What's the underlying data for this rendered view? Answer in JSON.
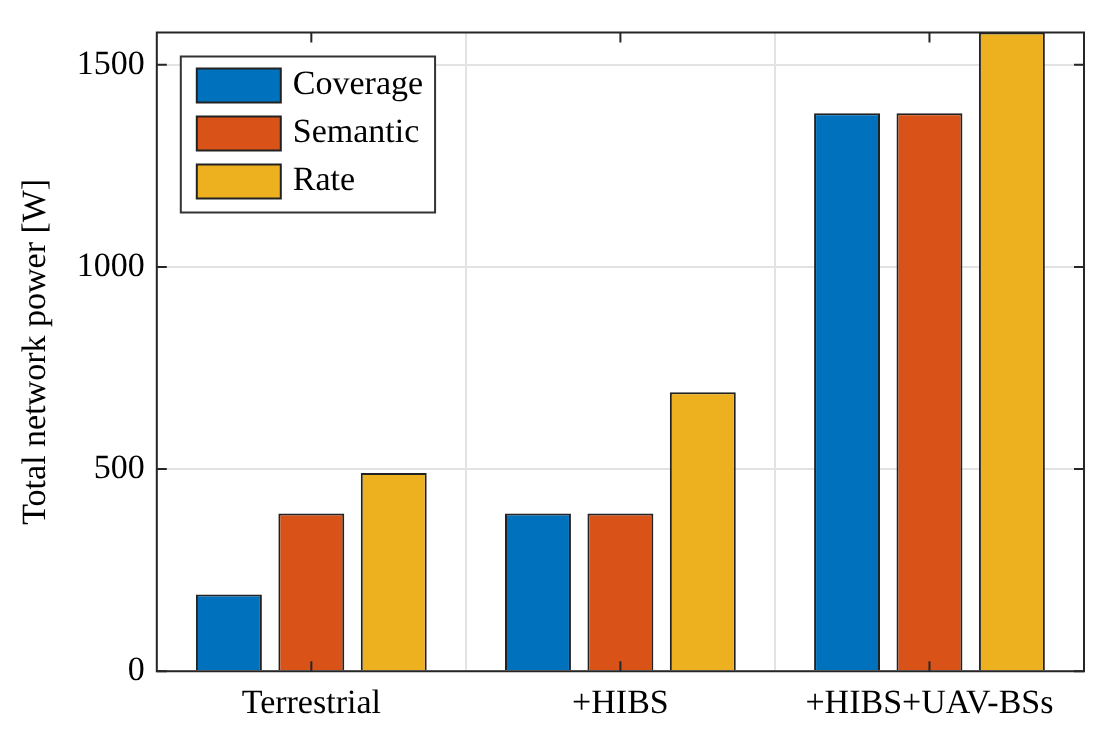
{
  "chart_data": {
    "type": "bar",
    "ylabel": "Total network power [W]",
    "categories": [
      "Terrestrial",
      "+HIBS",
      "+HIBS+UAV-BSs"
    ],
    "series": [
      {
        "name": "Coverage",
        "color": "#0072bd",
        "values": [
          190,
          390,
          1380
        ]
      },
      {
        "name": "Semantic",
        "color": "#d95319",
        "values": [
          390,
          390,
          1380
        ]
      },
      {
        "name": "Rate",
        "color": "#edb120",
        "values": [
          490,
          690,
          1580
        ]
      }
    ],
    "ylim": [
      0,
      1580
    ],
    "yticks": [
      0,
      500,
      1000,
      1500
    ],
    "grid": true,
    "legend": "top left"
  }
}
